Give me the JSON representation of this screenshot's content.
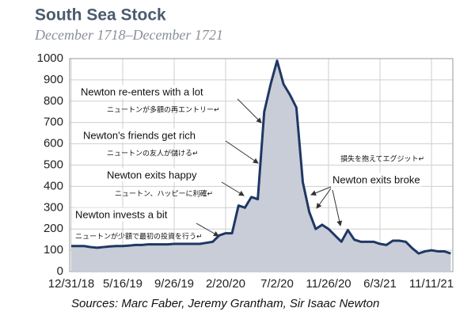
{
  "chart_data": {
    "type": "area",
    "title": "South Sea Stock",
    "subtitle": "December 1718–December 1721",
    "source": "Sources: Marc Faber, Jeremy Grantham, Sir Isaac Newton",
    "categories": [
      "12/31/18",
      null,
      null,
      null,
      null,
      null,
      null,
      null,
      "5/16/19",
      null,
      null,
      null,
      null,
      null,
      null,
      null,
      "9/26/19",
      null,
      null,
      null,
      null,
      null,
      null,
      null,
      "2/20/20",
      null,
      null,
      null,
      null,
      null,
      null,
      null,
      "7/2/20",
      null,
      null,
      null,
      null,
      null,
      null,
      null,
      "11/26/20",
      null,
      null,
      null,
      null,
      null,
      null,
      null,
      "6/3/21",
      null,
      null,
      null,
      null,
      null,
      null,
      null,
      "11/11/21",
      null,
      null,
      null
    ],
    "values": [
      120,
      120,
      120,
      115,
      112,
      115,
      118,
      120,
      120,
      122,
      125,
      125,
      128,
      128,
      128,
      128,
      130,
      130,
      130,
      130,
      130,
      135,
      140,
      170,
      180,
      180,
      310,
      300,
      350,
      340,
      750,
      880,
      990,
      880,
      830,
      770,
      420,
      280,
      200,
      220,
      200,
      170,
      140,
      195,
      150,
      140,
      140,
      140,
      130,
      125,
      145,
      145,
      140,
      110,
      85,
      95,
      100,
      95,
      95,
      85
    ],
    "color": "#1f3864",
    "fill": "#c9cdd7",
    "ylim": [
      0,
      1000
    ],
    "yticks": [
      0,
      100,
      200,
      300,
      400,
      500,
      600,
      700,
      800,
      900,
      1000
    ],
    "grid": true,
    "annotations": [
      {
        "text": "Newton re-enters with a lot",
        "note": "ニュートンが多額の再エントリー↵"
      },
      {
        "text": "Newton's friends get rich",
        "note": "ニュートンの友人が儲ける↵"
      },
      {
        "text": "Newton exits happy",
        "note": "ニュートン、ハッピーに利確↵"
      },
      {
        "text": "Newton invests a bit",
        "note": "ニュートンが少額で最初の投資を行う↵"
      },
      {
        "text": "Newton exits broke",
        "note": "損失を抱えてエグジット↵"
      }
    ]
  }
}
